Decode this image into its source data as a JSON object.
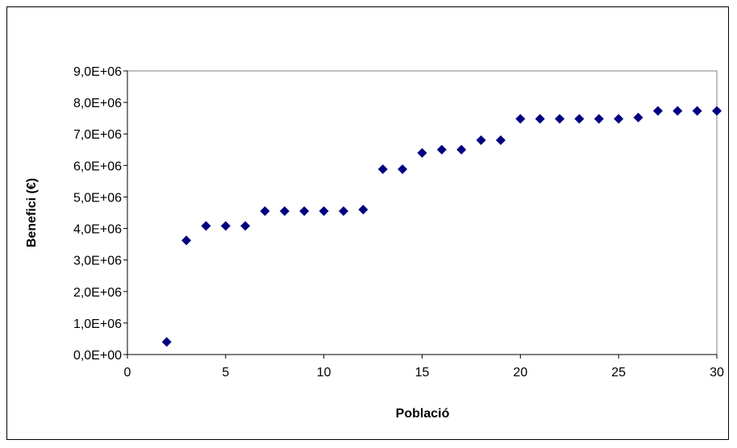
{
  "chart_data": {
    "type": "scatter",
    "title": "",
    "xlabel": "Població",
    "ylabel": "Benefici (€)",
    "xlim": [
      0,
      30
    ],
    "ylim": [
      0,
      9000000
    ],
    "x_ticks": [
      0,
      5,
      10,
      15,
      20,
      25,
      30
    ],
    "x_tick_labels": [
      "0",
      "5",
      "10",
      "15",
      "20",
      "25",
      "30"
    ],
    "y_ticks": [
      0,
      1000000,
      2000000,
      3000000,
      4000000,
      5000000,
      6000000,
      7000000,
      8000000,
      9000000
    ],
    "y_tick_labels": [
      "0,0E+00",
      "1,0E+06",
      "2,0E+06",
      "3,0E+06",
      "4,0E+06",
      "5,0E+06",
      "6,0E+06",
      "7,0E+06",
      "8,0E+06",
      "9,0E+06"
    ],
    "grid": false,
    "legend": "none",
    "marker_color": "#000080",
    "series": [
      {
        "x": [
          2,
          3,
          4,
          5,
          6,
          7,
          8,
          9,
          10,
          11,
          12,
          13,
          14,
          15,
          16,
          17,
          18,
          19,
          20,
          21,
          22,
          23,
          24,
          25,
          26,
          27,
          28,
          29,
          30
        ],
        "values": [
          400000,
          3620000,
          4080000,
          4080000,
          4080000,
          4550000,
          4550000,
          4550000,
          4550000,
          4550000,
          4600000,
          5880000,
          5880000,
          6400000,
          6500000,
          6500000,
          6800000,
          6800000,
          7480000,
          7480000,
          7480000,
          7480000,
          7480000,
          7480000,
          7520000,
          7730000,
          7730000,
          7730000,
          7730000
        ]
      }
    ]
  }
}
